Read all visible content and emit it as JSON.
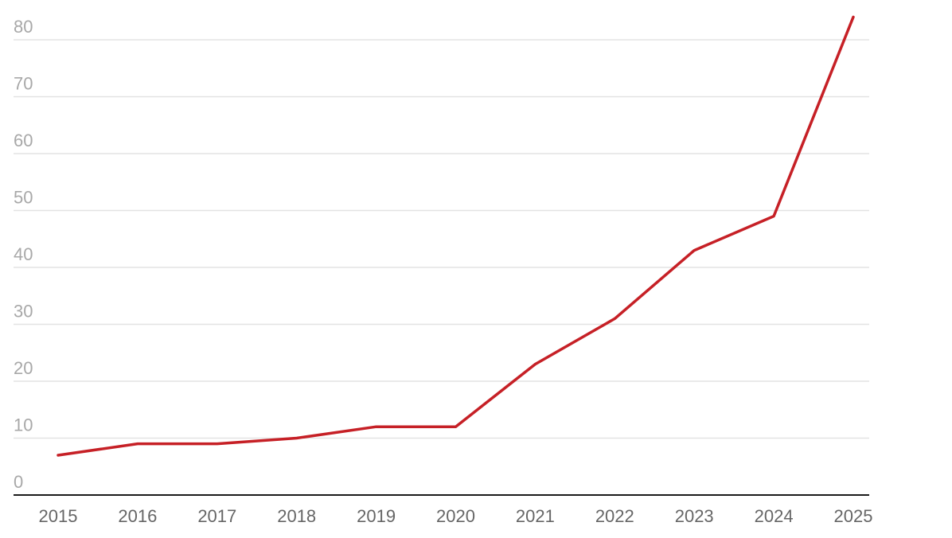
{
  "chart_data": {
    "type": "line",
    "title": "",
    "xlabel": "",
    "ylabel": "",
    "categories": [
      "2015",
      "2016",
      "2017",
      "2018",
      "2019",
      "2020",
      "2021",
      "2022",
      "2023",
      "2024",
      "2025"
    ],
    "series": [
      {
        "values": [
          7,
          9,
          9,
          10,
          12,
          12,
          23,
          31,
          43,
          49,
          84
        ],
        "color": "#c62026"
      }
    ],
    "ylim": [
      0,
      80
    ],
    "yticks": [
      "0",
      "10",
      "20",
      "30",
      "40",
      "50",
      "60",
      "70",
      "80"
    ],
    "grid": true,
    "legend": "none"
  }
}
